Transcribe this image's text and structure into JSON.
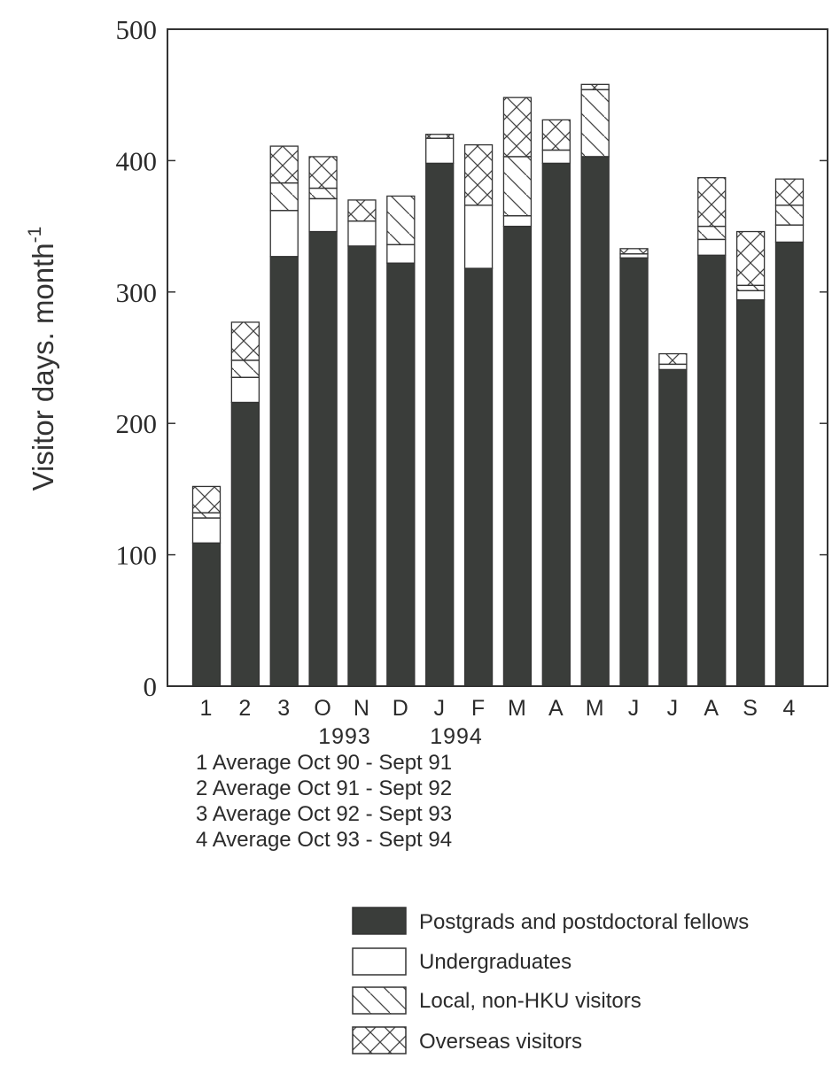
{
  "chart_data": {
    "type": "bar",
    "stacked": true,
    "ylabel": "Visitor days. month",
    "ylabel_superscript": "-1",
    "ylim": [
      0,
      500
    ],
    "yticks": [
      "0",
      "100",
      "200",
      "300",
      "400",
      "500"
    ],
    "categories": [
      "1",
      "2",
      "3",
      "O",
      "N",
      "D",
      "J",
      "F",
      "M",
      "A",
      "M",
      "J",
      "J",
      "A",
      "S",
      "4"
    ],
    "year_labels": [
      {
        "after_category_index": 3,
        "text": "1993"
      },
      {
        "after_category_index": 6,
        "text": "1994"
      }
    ],
    "notes": [
      "1 Average Oct 90 - Sept 91",
      "2 Average Oct 91 - Sept 92",
      "3 Average Oct 92 - Sept 93",
      "4 Average Oct 93 - Sept 94"
    ],
    "series": [
      {
        "name": "Postgrads and postdoctoral fellows",
        "pattern": "solid",
        "color": "#3a3d3a",
        "values": [
          109,
          216,
          327,
          346,
          335,
          322,
          398,
          318,
          350,
          398,
          403,
          326,
          241,
          328,
          294,
          338
        ]
      },
      {
        "name": "Undergraduates",
        "pattern": "blank",
        "color": "#ffffff",
        "values": [
          19,
          19,
          35,
          25,
          19,
          14,
          19,
          48,
          8,
          10,
          0,
          3,
          4,
          12,
          7,
          13
        ]
      },
      {
        "name": "Local, non-HKU visitors",
        "pattern": "single-hatch",
        "color": "#ffffff",
        "values": [
          4,
          13,
          21,
          8,
          0,
          37,
          0,
          0,
          45,
          0,
          51,
          0,
          0,
          10,
          4,
          15
        ]
      },
      {
        "name": "Overseas visitors",
        "pattern": "cross-hatch",
        "color": "#ffffff",
        "values": [
          20,
          29,
          28,
          24,
          16,
          0,
          3,
          46,
          45,
          23,
          4,
          4,
          8,
          37,
          41,
          20
        ]
      }
    ],
    "legend_position": "bottom-right",
    "grid": false
  }
}
